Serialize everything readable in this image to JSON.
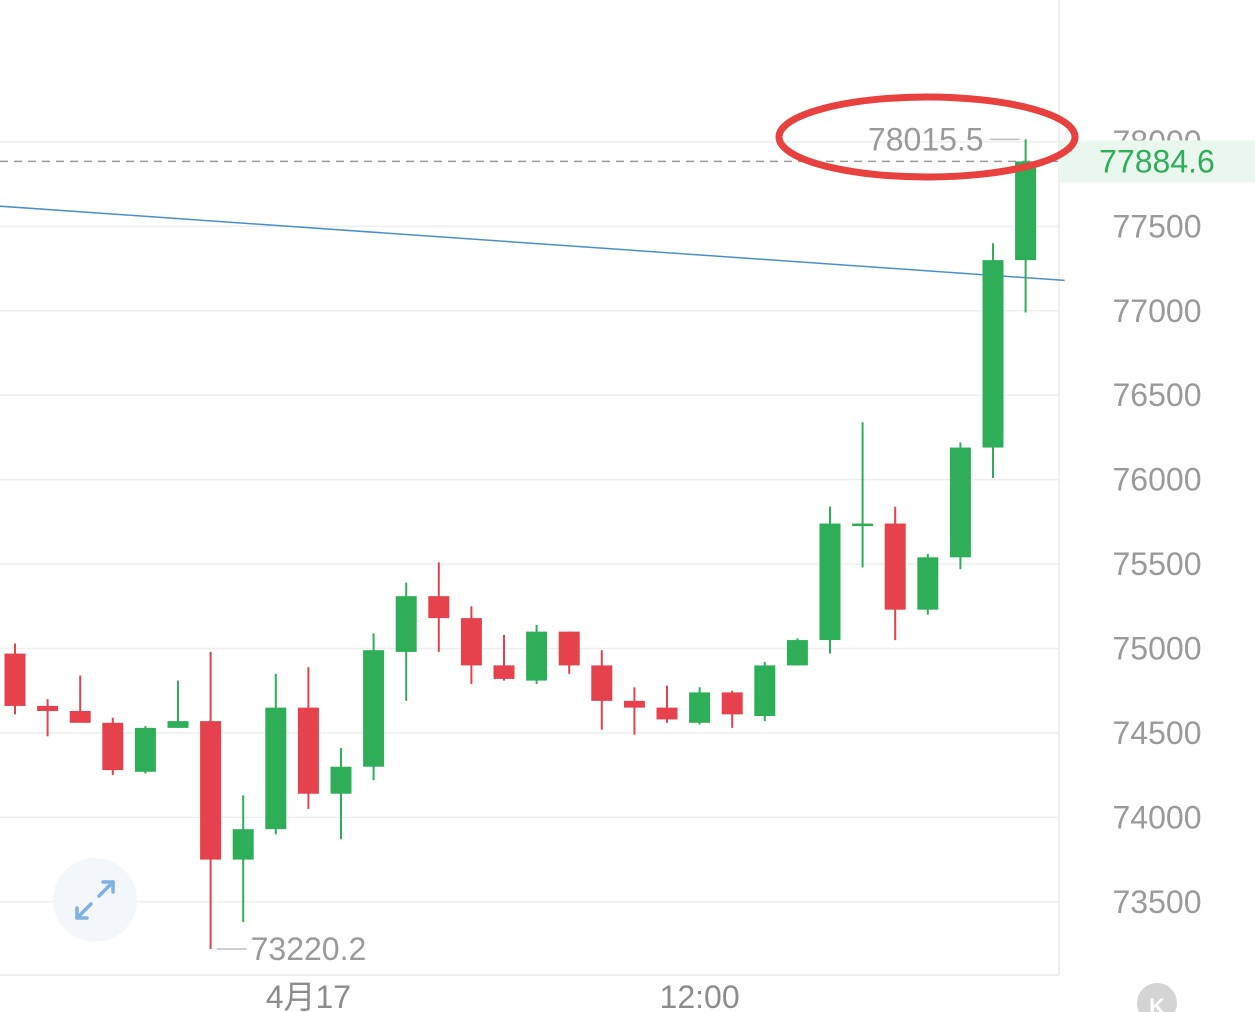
{
  "chart_data": {
    "type": "candlestick",
    "y_ticks": [
      73500,
      74000,
      74500,
      75000,
      75500,
      76000,
      76500,
      77000,
      77500,
      78000
    ],
    "y_tick_labels": [
      "73500",
      "74000",
      "74500",
      "75000",
      "75500",
      "76000",
      "76500",
      "77000",
      "77500",
      "78000"
    ],
    "ylim": [
      73050,
      78500
    ],
    "x_labels": [
      {
        "label": "4月17",
        "index": 9
      },
      {
        "label": "12:00",
        "index": 21
      }
    ],
    "last_price": 77884.6,
    "last_price_label": "77884.6",
    "high_label": "78015.5",
    "low_label": "73220.2",
    "high_index": 31,
    "low_index": 6,
    "trendline": [
      {
        "index": -0.5,
        "value": 77620
      },
      {
        "index": 32.2,
        "value": 77180
      }
    ],
    "colors": {
      "up": "#2fae5a",
      "down": "#e5424d",
      "trendline": "#4a90c8",
      "highlight": "#e8413f",
      "grid": "#eeeeee"
    },
    "candles": [
      {
        "open": 74970,
        "high": 75030,
        "close": 74660,
        "low": 74610
      },
      {
        "open": 74660,
        "high": 74700,
        "close": 74630,
        "low": 74480
      },
      {
        "open": 74630,
        "high": 74840,
        "close": 74560,
        "low": 74560
      },
      {
        "open": 74560,
        "high": 74590,
        "close": 74280,
        "low": 74250
      },
      {
        "open": 74270,
        "high": 74540,
        "close": 74530,
        "low": 74260
      },
      {
        "open": 74530,
        "high": 74810,
        "close": 74570,
        "low": 74530
      },
      {
        "open": 74570,
        "high": 74980,
        "close": 73750,
        "low": 73220.2
      },
      {
        "open": 73750,
        "high": 74130,
        "close": 73930,
        "low": 73380
      },
      {
        "open": 73930,
        "high": 74850,
        "close": 74650,
        "low": 73900
      },
      {
        "open": 74650,
        "high": 74890,
        "close": 74140,
        "low": 74050
      },
      {
        "open": 74140,
        "high": 74410,
        "close": 74300,
        "low": 73870
      },
      {
        "open": 74300,
        "high": 75090,
        "close": 74990,
        "low": 74220
      },
      {
        "open": 74980,
        "high": 75390,
        "close": 75310,
        "low": 74690
      },
      {
        "open": 75310,
        "high": 75510,
        "close": 75180,
        "low": 74980
      },
      {
        "open": 75180,
        "high": 75250,
        "close": 74900,
        "low": 74790
      },
      {
        "open": 74900,
        "high": 75080,
        "close": 74820,
        "low": 74810
      },
      {
        "open": 74810,
        "high": 75140,
        "close": 75100,
        "low": 74790
      },
      {
        "open": 75100,
        "high": 75100,
        "close": 74900,
        "low": 74850
      },
      {
        "open": 74900,
        "high": 74990,
        "close": 74690,
        "low": 74520
      },
      {
        "open": 74690,
        "high": 74770,
        "close": 74650,
        "low": 74490
      },
      {
        "open": 74650,
        "high": 74780,
        "close": 74580,
        "low": 74560
      },
      {
        "open": 74560,
        "high": 74770,
        "close": 74740,
        "low": 74550
      },
      {
        "open": 74740,
        "high": 74750,
        "close": 74610,
        "low": 74530
      },
      {
        "open": 74600,
        "high": 74920,
        "close": 74900,
        "low": 74570
      },
      {
        "open": 74900,
        "high": 75060,
        "close": 75050,
        "low": 74900
      },
      {
        "open": 75050,
        "high": 75840,
        "close": 75740,
        "low": 74970
      },
      {
        "open": 75740,
        "high": 76340,
        "close": 75740,
        "low": 75480
      },
      {
        "open": 75740,
        "high": 75840,
        "close": 75230,
        "low": 75050
      },
      {
        "open": 75230,
        "high": 75560,
        "close": 75540,
        "low": 75200
      },
      {
        "open": 75540,
        "high": 76220,
        "close": 76190,
        "low": 75470
      },
      {
        "open": 76190,
        "high": 77400,
        "close": 77300,
        "low": 76010
      },
      {
        "open": 77300,
        "high": 78015.5,
        "close": 77884.6,
        "low": 76990
      }
    ]
  },
  "icons": {
    "expand": "expand-arrows-icon",
    "kline": "kline-badge-icon"
  },
  "kline_badge_text": "K"
}
